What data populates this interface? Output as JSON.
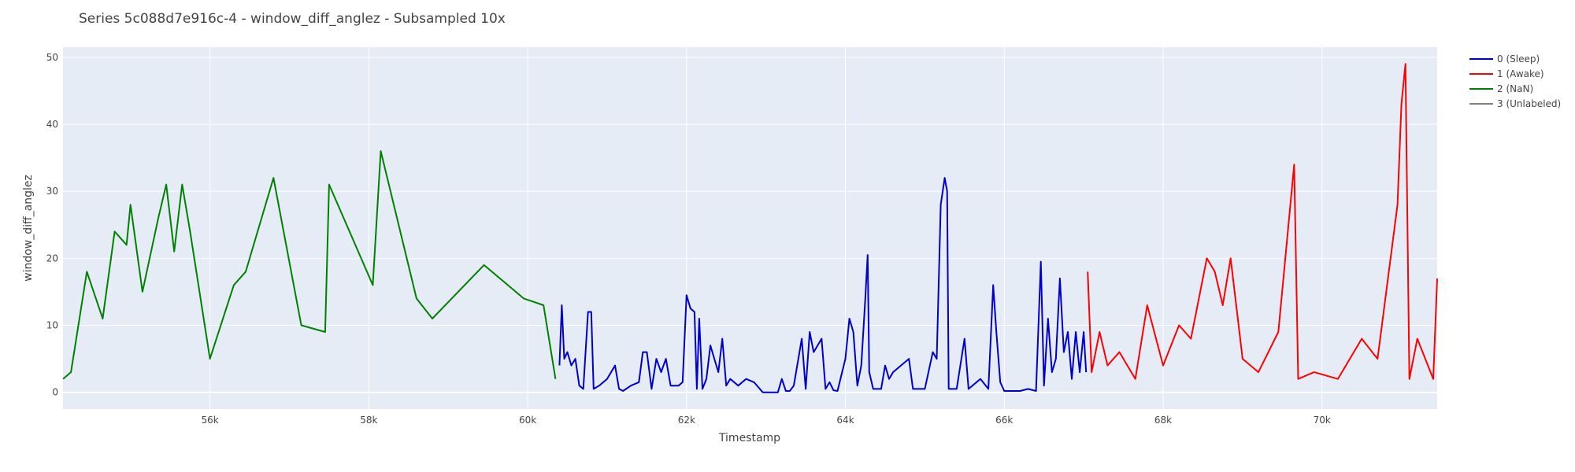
{
  "chart_data": {
    "type": "line",
    "title": "Series 5c088d7e916c-4 - window_diff_anglez - Subsampled 10x",
    "xlabel": "Timestamp",
    "ylabel": "window_diff_anglez",
    "xlim": [
      54150,
      71450
    ],
    "ylim": [
      -2.5,
      51.5
    ],
    "x_ticks": [
      56000,
      58000,
      60000,
      62000,
      64000,
      66000,
      68000,
      70000
    ],
    "x_tick_labels": [
      "56k",
      "58k",
      "60k",
      "62k",
      "64k",
      "66k",
      "68k",
      "70k"
    ],
    "y_ticks": [
      0,
      10,
      20,
      30,
      40,
      50
    ],
    "y_tick_labels": [
      "0",
      "10",
      "20",
      "30",
      "40",
      "50"
    ],
    "grid": true,
    "legend_position": "top-right",
    "colors": {
      "plot_bg": "#e5ecf6",
      "grid": "#ffffff"
    },
    "series": [
      {
        "name": "0 (Sleep)",
        "color": "#0000cc",
        "points": [
          [
            60400,
            4
          ],
          [
            60430,
            13
          ],
          [
            60460,
            5
          ],
          [
            60500,
            6
          ],
          [
            60550,
            4
          ],
          [
            60600,
            5
          ],
          [
            60650,
            1
          ],
          [
            60700,
            0.5
          ],
          [
            60760,
            12
          ],
          [
            60800,
            12
          ],
          [
            60830,
            0.5
          ],
          [
            60900,
            1
          ],
          [
            61000,
            2
          ],
          [
            61100,
            4
          ],
          [
            61150,
            0.5
          ],
          [
            61200,
            0.2
          ],
          [
            61300,
            1
          ],
          [
            61400,
            1.5
          ],
          [
            61450,
            6
          ],
          [
            61500,
            6
          ],
          [
            61560,
            0.5
          ],
          [
            61620,
            5
          ],
          [
            61680,
            3
          ],
          [
            61740,
            5
          ],
          [
            61800,
            1
          ],
          [
            61900,
            1
          ],
          [
            61950,
            1.5
          ],
          [
            62000,
            14.5
          ],
          [
            62050,
            12.5
          ],
          [
            62100,
            12
          ],
          [
            62130,
            0.5
          ],
          [
            62160,
            11
          ],
          [
            62200,
            0.5
          ],
          [
            62250,
            2
          ],
          [
            62300,
            7
          ],
          [
            62350,
            5
          ],
          [
            62400,
            3
          ],
          [
            62450,
            8
          ],
          [
            62500,
            1
          ],
          [
            62550,
            2
          ],
          [
            62650,
            1
          ],
          [
            62750,
            2
          ],
          [
            62850,
            1.5
          ],
          [
            62960,
            0
          ],
          [
            63150,
            0
          ],
          [
            63200,
            2
          ],
          [
            63250,
            0.2
          ],
          [
            63300,
            0.2
          ],
          [
            63350,
            1
          ],
          [
            63450,
            8
          ],
          [
            63500,
            0.5
          ],
          [
            63550,
            9
          ],
          [
            63600,
            6
          ],
          [
            63700,
            8
          ],
          [
            63750,
            0.5
          ],
          [
            63800,
            1.5
          ],
          [
            63850,
            0.3
          ],
          [
            63900,
            0.2
          ],
          [
            64000,
            5
          ],
          [
            64050,
            11
          ],
          [
            64100,
            9
          ],
          [
            64150,
            1
          ],
          [
            64200,
            4
          ],
          [
            64250,
            14
          ],
          [
            64280,
            20.5
          ],
          [
            64300,
            3
          ],
          [
            64350,
            0.5
          ],
          [
            64450,
            0.5
          ],
          [
            64500,
            4
          ],
          [
            64550,
            2
          ],
          [
            64600,
            3
          ],
          [
            64700,
            4
          ],
          [
            64800,
            5
          ],
          [
            64850,
            0.5
          ],
          [
            64920,
            0.5
          ],
          [
            65000,
            0.5
          ],
          [
            65100,
            6
          ],
          [
            65150,
            5
          ],
          [
            65200,
            28
          ],
          [
            65250,
            32
          ],
          [
            65280,
            30
          ],
          [
            65300,
            0.5
          ],
          [
            65400,
            0.5
          ],
          [
            65500,
            8
          ],
          [
            65550,
            0.5
          ],
          [
            65700,
            2
          ],
          [
            65800,
            0.5
          ],
          [
            65860,
            16
          ],
          [
            65900,
            9
          ],
          [
            65950,
            1.5
          ],
          [
            66000,
            0.2
          ],
          [
            66200,
            0.2
          ],
          [
            66300,
            0.5
          ],
          [
            66400,
            0.2
          ],
          [
            66460,
            19.5
          ],
          [
            66500,
            1
          ],
          [
            66550,
            11
          ],
          [
            66600,
            3
          ],
          [
            66650,
            5
          ],
          [
            66700,
            17
          ],
          [
            66750,
            6
          ],
          [
            66800,
            9
          ],
          [
            66850,
            2
          ],
          [
            66900,
            9
          ],
          [
            66950,
            3
          ],
          [
            67000,
            9
          ],
          [
            67030,
            3
          ]
        ]
      },
      {
        "name": "1 (Awake)",
        "color": "#ff0000",
        "points": [
          [
            67050,
            18
          ],
          [
            67100,
            3
          ],
          [
            67200,
            9
          ],
          [
            67300,
            4
          ],
          [
            67450,
            6
          ],
          [
            67650,
            2
          ],
          [
            67800,
            13
          ],
          [
            68000,
            4
          ],
          [
            68200,
            10
          ],
          [
            68350,
            8
          ],
          [
            68450,
            14
          ],
          [
            68550,
            20
          ],
          [
            68650,
            18
          ],
          [
            68750,
            13
          ],
          [
            68850,
            20
          ],
          [
            69000,
            5
          ],
          [
            69200,
            3
          ],
          [
            69450,
            9
          ],
          [
            69650,
            34
          ],
          [
            69700,
            2
          ],
          [
            69900,
            3
          ],
          [
            70200,
            2
          ],
          [
            70500,
            8
          ],
          [
            70700,
            5
          ],
          [
            70950,
            28
          ],
          [
            71000,
            43
          ],
          [
            71050,
            49
          ],
          [
            71100,
            2
          ],
          [
            71200,
            8
          ],
          [
            71400,
            2
          ],
          [
            71450,
            17
          ]
        ]
      },
      {
        "name": "2 (NaN)",
        "color": "#008000",
        "points": [
          [
            54150,
            2
          ],
          [
            54250,
            3
          ],
          [
            54450,
            18
          ],
          [
            54650,
            11
          ],
          [
            54800,
            24
          ],
          [
            54950,
            22
          ],
          [
            55000,
            28
          ],
          [
            55150,
            15
          ],
          [
            55350,
            26
          ],
          [
            55450,
            31
          ],
          [
            55550,
            21
          ],
          [
            55650,
            31
          ],
          [
            55750,
            24
          ],
          [
            56000,
            5
          ],
          [
            56300,
            16
          ],
          [
            56450,
            18
          ],
          [
            56800,
            32
          ],
          [
            57150,
            10
          ],
          [
            57450,
            9
          ],
          [
            57500,
            31
          ],
          [
            58050,
            16
          ],
          [
            58150,
            36
          ],
          [
            58600,
            14
          ],
          [
            58800,
            11
          ],
          [
            59450,
            19
          ],
          [
            59950,
            14
          ],
          [
            60200,
            13
          ],
          [
            60350,
            2
          ]
        ]
      },
      {
        "name": "3 (Unlabeled)",
        "color": "#808080",
        "points": []
      }
    ]
  }
}
